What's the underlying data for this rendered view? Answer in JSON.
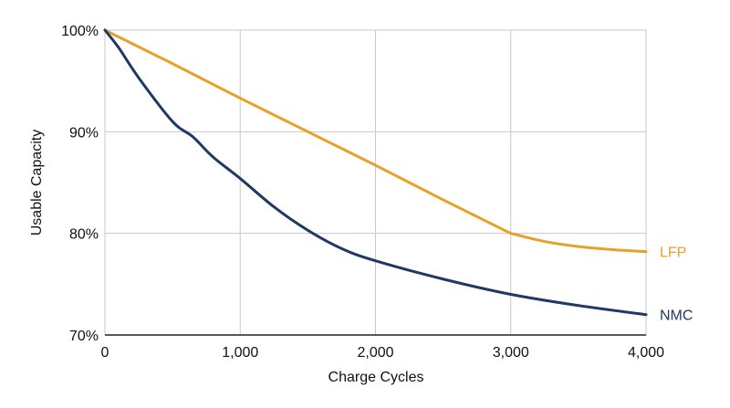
{
  "chart_data": {
    "type": "line",
    "title": "",
    "xlabel": "Charge Cycles",
    "ylabel": "Usable Capacity",
    "xlim": [
      0,
      4000
    ],
    "ylim": [
      70,
      100
    ],
    "x_ticks": [
      0,
      1000,
      2000,
      3000,
      4000
    ],
    "x_tick_labels": [
      "0",
      "1,000",
      "2,000",
      "3,000",
      "4,000"
    ],
    "y_ticks": [
      70,
      80,
      90,
      100
    ],
    "y_tick_labels": [
      "70%",
      "80%",
      "90%",
      "100%"
    ],
    "grid": true,
    "legend": "inline labels at line ends (right)",
    "series": [
      {
        "name": "LFP",
        "color": "#E6A12A",
        "x": [
          0,
          500,
          1000,
          1500,
          2000,
          2500,
          3000,
          3250,
          3500,
          3750,
          4000
        ],
        "y": [
          100,
          96.7,
          93.3,
          90.0,
          86.7,
          83.3,
          80.0,
          79.2,
          78.7,
          78.4,
          78.2
        ]
      },
      {
        "name": "NMC",
        "color": "#1F3864",
        "x": [
          0,
          100,
          250,
          500,
          650,
          800,
          1000,
          1250,
          1500,
          1750,
          2000,
          2500,
          3000,
          3500,
          4000
        ],
        "y": [
          100,
          98.3,
          95.3,
          91.0,
          89.5,
          87.5,
          85.4,
          82.6,
          80.3,
          78.5,
          77.3,
          75.5,
          74.0,
          72.9,
          72.0
        ]
      }
    ]
  }
}
